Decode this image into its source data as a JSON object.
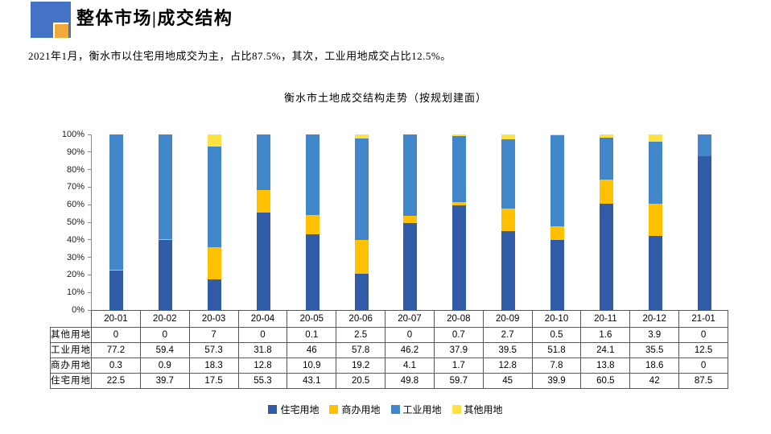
{
  "header": {
    "title": "整体市场|成交结构"
  },
  "subtitle": "2021年1月，衡水市以住宅用地成交为主，占比87.5%，其次，工业用地成交占比12.5%。",
  "colors": {
    "logo_blue": "#4472C4",
    "logo_orange": "#F2A93C",
    "residential": "#2F5BA7",
    "commercial": "#FFC000",
    "industrial": "#4186C8",
    "other": "#FFE143",
    "axis": "#898989",
    "table_border": "#595959"
  },
  "chart_data": {
    "type": "bar",
    "stacked": true,
    "percent_stacked": true,
    "title": "衡水市土地成交结构走势（按规划建面）",
    "categories": [
      "20-01",
      "20-02",
      "20-03",
      "20-04",
      "20-05",
      "20-06",
      "20-07",
      "20-08",
      "20-09",
      "20-10",
      "20-11",
      "20-12",
      "21-01"
    ],
    "series": [
      {
        "name": "住宅用地",
        "color": "#2F5BA7",
        "values": [
          22.5,
          39.7,
          17.5,
          55.3,
          43.1,
          20.5,
          49.8,
          59.7,
          45,
          39.9,
          60.5,
          42,
          87.5
        ]
      },
      {
        "name": "商办用地",
        "color": "#FFC000",
        "values": [
          0.3,
          0.9,
          18.3,
          12.8,
          10.9,
          19.2,
          4.1,
          1.7,
          12.8,
          7.8,
          13.8,
          18.6,
          0
        ]
      },
      {
        "name": "工业用地",
        "color": "#4186C8",
        "values": [
          77.2,
          59.4,
          57.3,
          31.8,
          46,
          57.8,
          46.2,
          37.9,
          39.5,
          51.8,
          24.1,
          35.5,
          12.5
        ]
      },
      {
        "name": "其他用地",
        "color": "#FFE143",
        "values": [
          0,
          0,
          7,
          0,
          0.1,
          2.5,
          0,
          0.7,
          2.7,
          0.5,
          1.6,
          3.9,
          0
        ]
      }
    ],
    "y_ticks": [
      "0%",
      "10%",
      "20%",
      "30%",
      "40%",
      "50%",
      "60%",
      "70%",
      "80%",
      "90%",
      "100%"
    ],
    "ylim": [
      0,
      100
    ],
    "grid": false,
    "legend_position": "bottom",
    "table_row_order": [
      "其他用地",
      "工业用地",
      "商办用地",
      "住宅用地"
    ]
  }
}
